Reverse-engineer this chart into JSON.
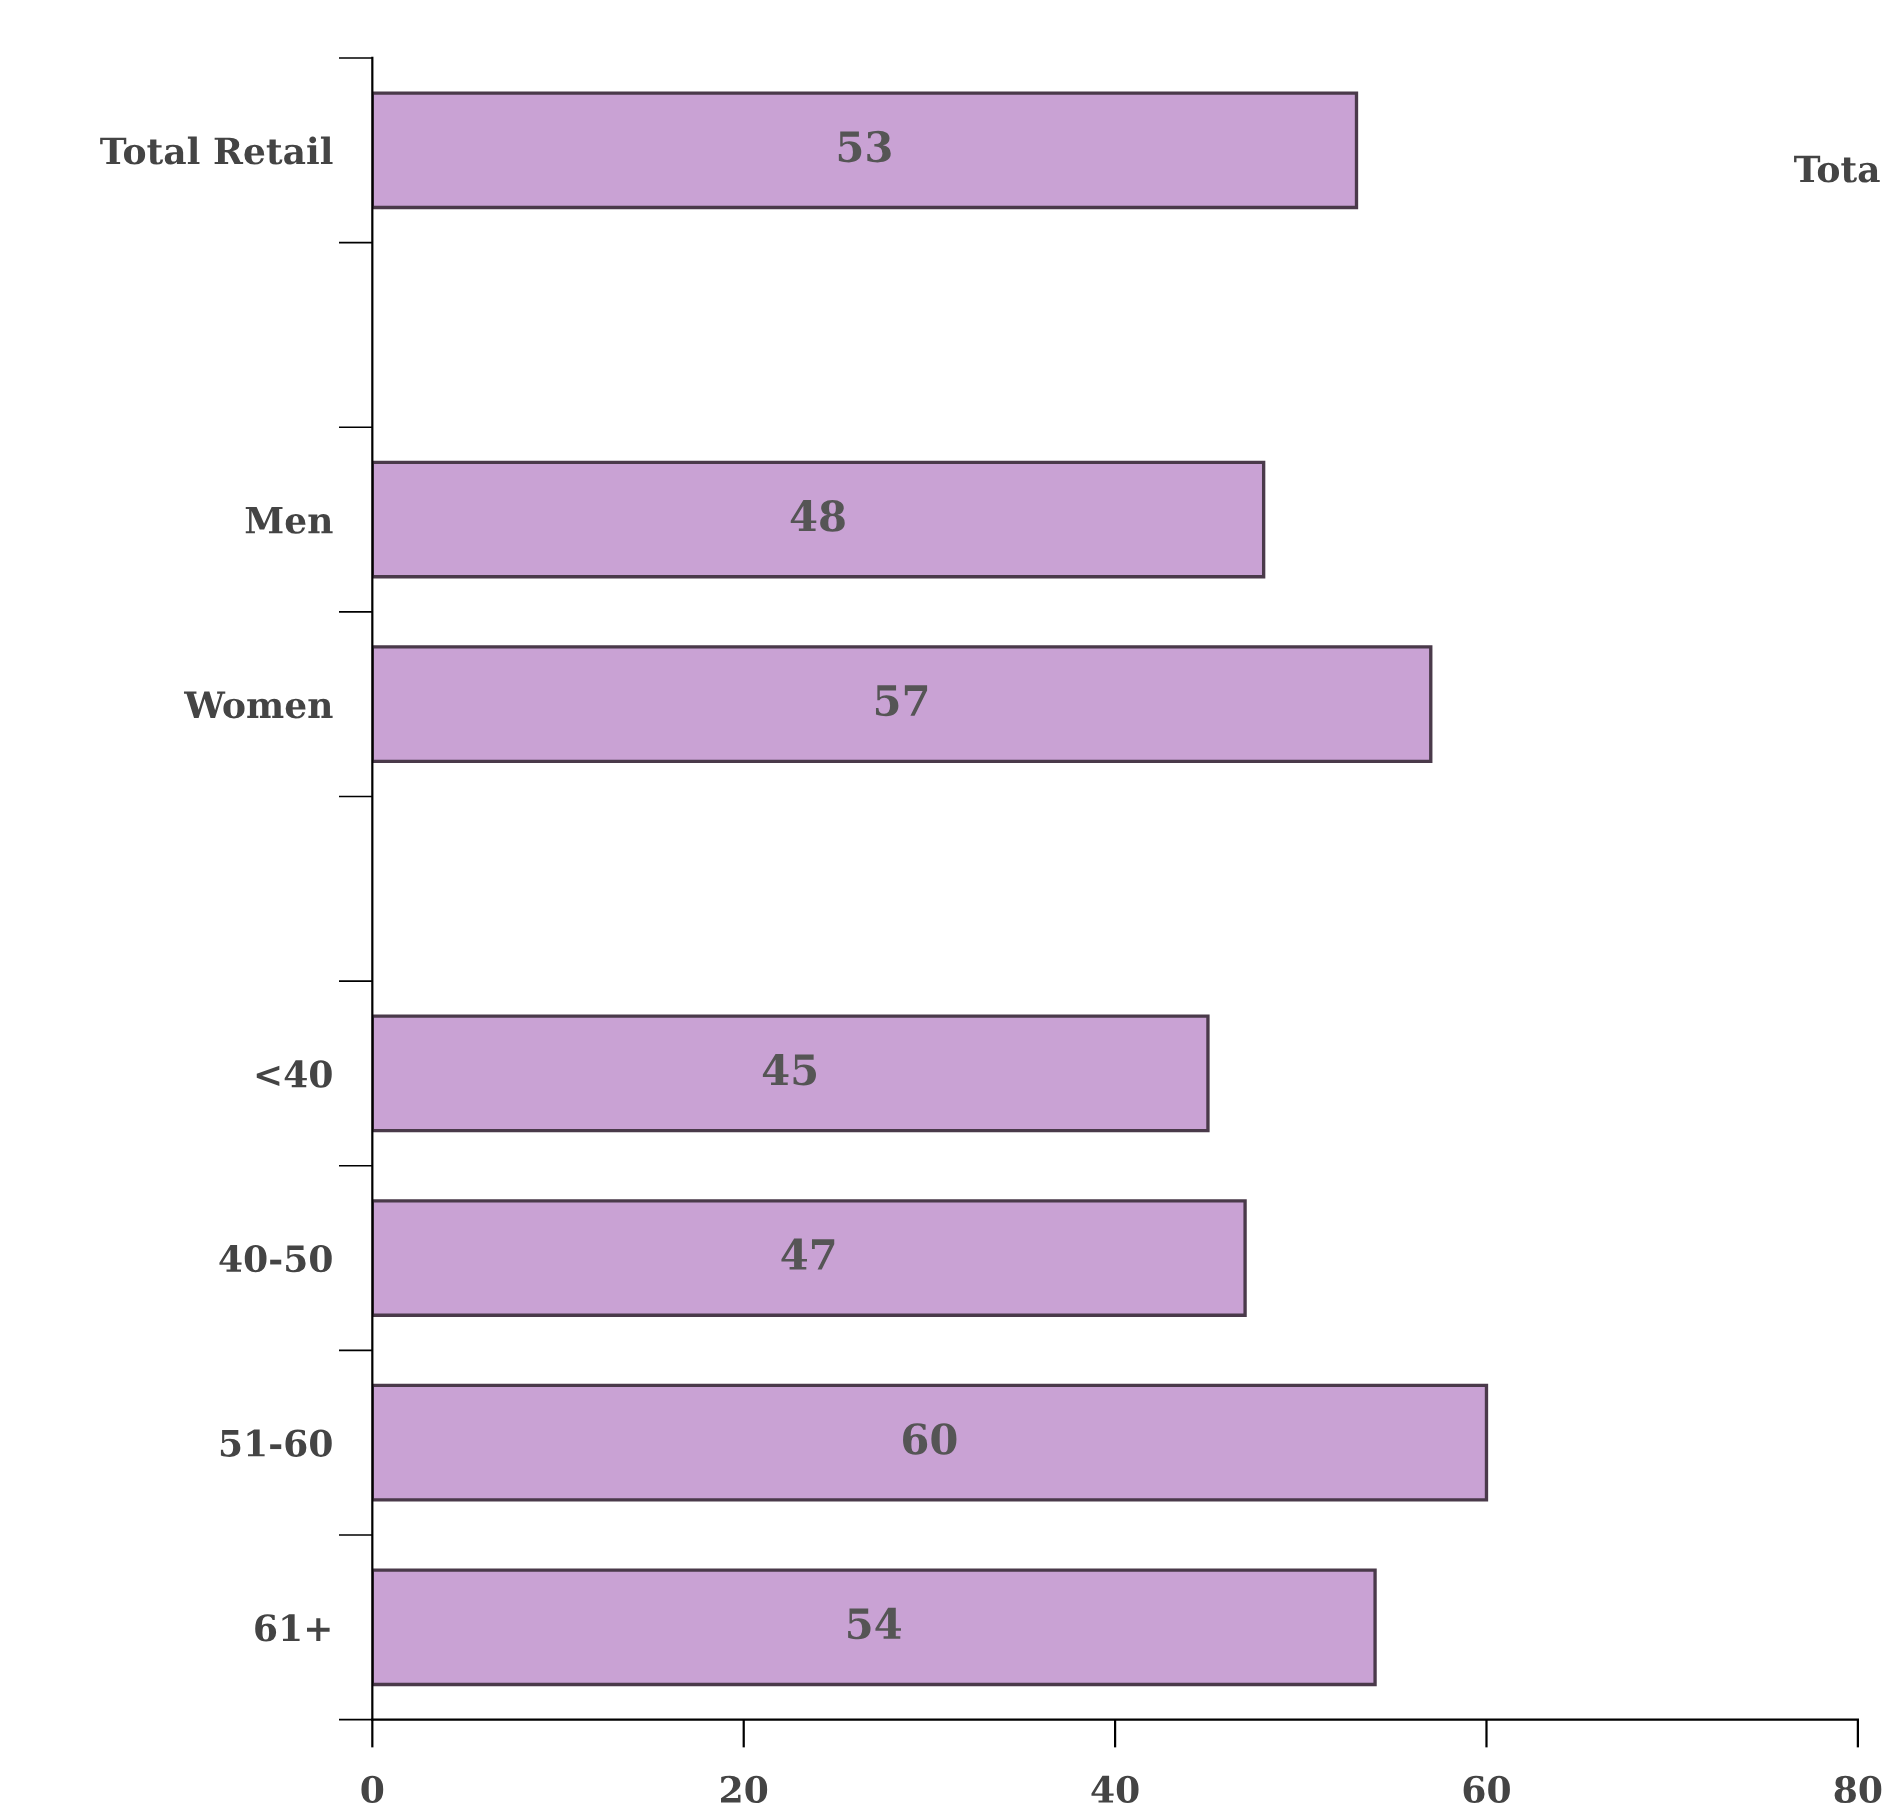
{
  "chart_data": {
    "type": "bar",
    "orientation": "horizontal",
    "categories": [
      "Total Retail",
      null,
      "Men",
      "Women",
      null,
      "<40",
      "40-50",
      "51-60",
      "61+"
    ],
    "values": [
      53,
      null,
      48,
      57,
      null,
      45,
      47,
      60,
      54
    ],
    "color": "#c9a2d4",
    "data_labels": true,
    "xlim": [
      0,
      80
    ],
    "xticks": [
      0,
      20,
      40,
      60,
      80
    ],
    "annotations": [
      "Tota"
    ]
  }
}
